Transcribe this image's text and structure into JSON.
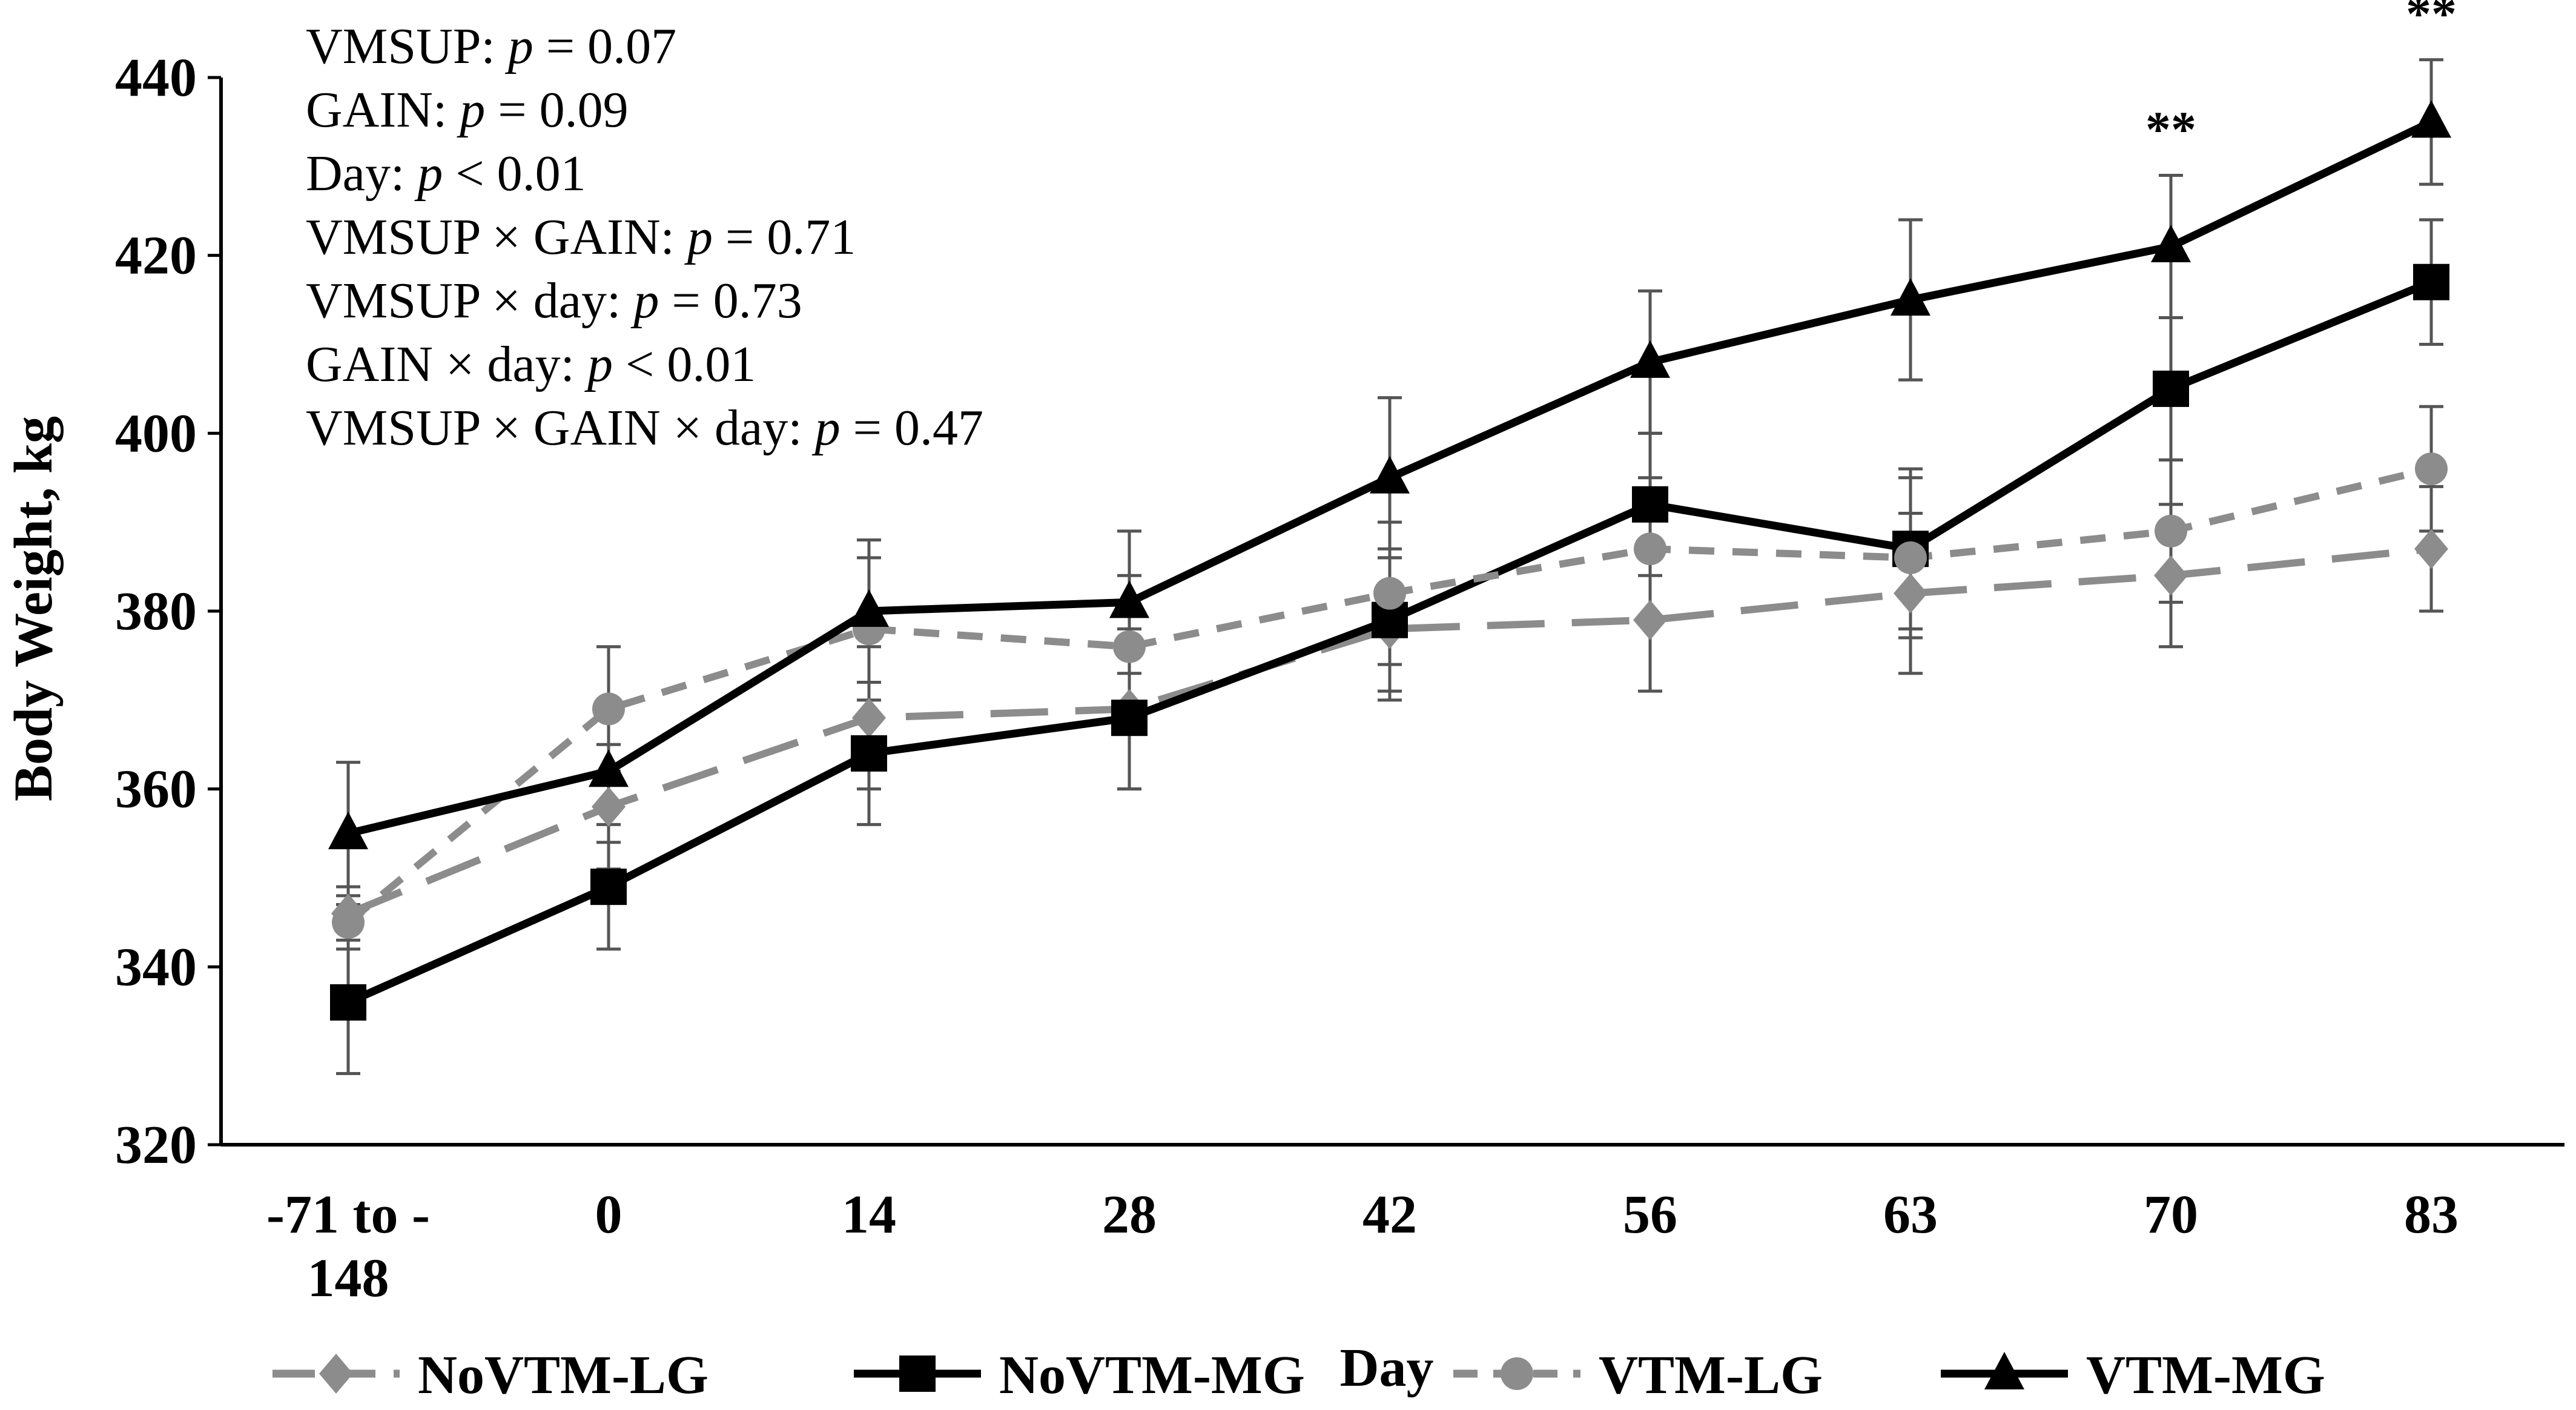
{
  "chart_data": {
    "type": "line",
    "title": "",
    "xlabel": "Day",
    "ylabel": "Body Weight, kg",
    "ylim": [
      320,
      440
    ],
    "ytick_step": 20,
    "yticks": [
      "320",
      "340",
      "360",
      "380",
      "400",
      "420",
      "440"
    ],
    "categories": [
      [
        "-71 to -",
        "148"
      ],
      [
        "0"
      ],
      [
        "14"
      ],
      [
        "28"
      ],
      [
        "42"
      ],
      [
        "56"
      ],
      [
        "63"
      ],
      [
        "70"
      ],
      [
        "83"
      ]
    ],
    "grid": false,
    "legend_position": "bottom",
    "series": [
      {
        "name": "NoVTM-LG",
        "color": "#8c8c8c",
        "dash": "long-dash",
        "marker": "diamond",
        "values": [
          346,
          358,
          368,
          369,
          378,
          379,
          382,
          384,
          387
        ],
        "errors": [
          3,
          7,
          8,
          9,
          8,
          8,
          9,
          8,
          7
        ]
      },
      {
        "name": "NoVTM-MG",
        "color": "#000000",
        "dash": "solid",
        "marker": "square",
        "values": [
          336,
          349,
          364,
          368,
          379,
          392,
          387,
          405,
          417
        ],
        "errors": [
          8,
          7,
          8,
          8,
          8,
          8,
          9,
          8,
          7
        ]
      },
      {
        "name": "VTM-LG",
        "color": "#8c8c8c",
        "dash": "short-dash",
        "marker": "circle",
        "values": [
          345,
          369,
          378,
          376,
          382,
          387,
          386,
          389,
          396
        ],
        "errors": [
          3,
          7,
          8,
          8,
          8,
          8,
          9,
          8,
          7
        ]
      },
      {
        "name": "VTM-MG",
        "color": "#000000",
        "dash": "solid",
        "marker": "triangle",
        "values": [
          355,
          362,
          380,
          381,
          395,
          408,
          415,
          421,
          435
        ],
        "errors": [
          8,
          8,
          8,
          8,
          9,
          8,
          9,
          8,
          7
        ]
      }
    ],
    "significance": [
      {
        "category_index": 7,
        "label": "**"
      },
      {
        "category_index": 8,
        "label": "**"
      }
    ],
    "annotations": [
      {
        "label": "VMSUP: ",
        "p_sign": " = ",
        "p_value": "0.07"
      },
      {
        "label": "GAIN: ",
        "p_sign": " = ",
        "p_value": "0.09"
      },
      {
        "label": "Day: ",
        "p_sign": " < ",
        "p_value": "0.01"
      },
      {
        "label": "VMSUP × GAIN: ",
        "p_sign": " = ",
        "p_value": "0.71"
      },
      {
        "label": "VMSUP × day: ",
        "p_sign": " = ",
        "p_value": "0.73"
      },
      {
        "label": "GAIN × day: ",
        "p_sign": " < ",
        "p_value": "0.01"
      },
      {
        "label": "VMSUP × GAIN × day: ",
        "p_sign": " = ",
        "p_value": "0.47"
      }
    ],
    "p_symbol": "p"
  }
}
